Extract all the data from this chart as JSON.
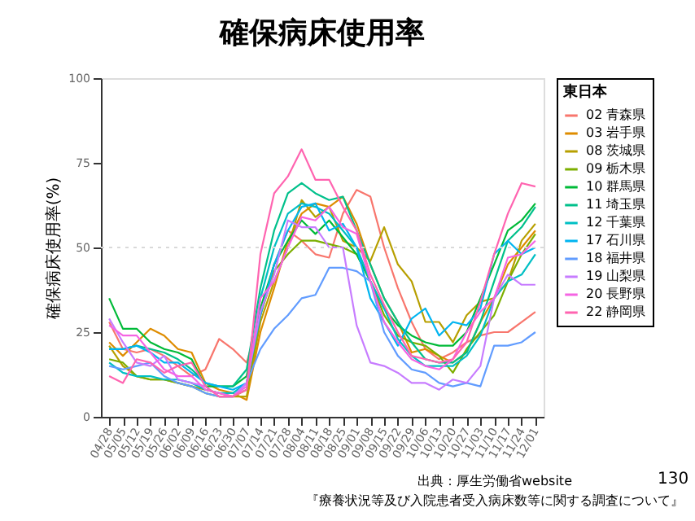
{
  "chart_data": {
    "type": "line",
    "title": "確保病床使用率",
    "ylabel": "確保病床使用率(%)",
    "legend_title": "東日本",
    "legend": "right",
    "line_style": "solid",
    "marker": "none",
    "categories": [
      "04/28",
      "05/05",
      "05/12",
      "05/19",
      "05/26",
      "06/02",
      "06/09",
      "06/16",
      "06/23",
      "06/30",
      "07/07",
      "07/14",
      "07/21",
      "07/28",
      "08/04",
      "08/11",
      "08/18",
      "08/25",
      "09/01",
      "09/08",
      "09/15",
      "09/22",
      "09/29",
      "10/06",
      "10/13",
      "10/20",
      "10/27",
      "11/03",
      "11/10",
      "11/17",
      "11/24",
      "12/01"
    ],
    "ylim": [
      0,
      100
    ],
    "yticks": [
      0,
      25,
      50,
      75,
      100
    ],
    "grid": false,
    "ref_lines": [
      {
        "axis": "y",
        "value": 50,
        "color": "#d9d9d9",
        "line_style": "dotted"
      }
    ],
    "series": [
      {
        "name": "02 青森県",
        "color": "#F8766D",
        "values": [
          28,
          20,
          19,
          20,
          18,
          15,
          12,
          14,
          23,
          20,
          16,
          30,
          45,
          55,
          52,
          48,
          47,
          60,
          67,
          65,
          50,
          38,
          28,
          20,
          17,
          19,
          22,
          24,
          25,
          25,
          28,
          31
        ]
      },
      {
        "name": "03 岩手県",
        "color": "#DE8C00",
        "values": [
          22,
          18,
          22,
          26,
          24,
          20,
          19,
          10,
          8,
          7,
          5,
          25,
          38,
          52,
          60,
          63,
          62,
          65,
          57,
          45,
          35,
          28,
          19,
          20,
          18,
          16,
          19,
          28,
          35,
          45,
          50,
          55
        ]
      },
      {
        "name": "08 茨城県",
        "color": "#B79F00",
        "values": [
          21,
          15,
          12,
          11,
          11,
          10,
          9,
          8,
          7,
          6,
          6,
          28,
          40,
          50,
          64,
          59,
          62,
          52,
          50,
          46,
          56,
          45,
          40,
          28,
          28,
          22,
          30,
          34,
          35,
          40,
          52,
          57
        ]
      },
      {
        "name": "09 栃木県",
        "color": "#7CAE00",
        "values": [
          17,
          16,
          12,
          11,
          11,
          10,
          9,
          7,
          6,
          6,
          8,
          30,
          43,
          48,
          52,
          52,
          51,
          50,
          48,
          40,
          30,
          24,
          22,
          21,
          18,
          13,
          20,
          25,
          30,
          40,
          48,
          54
        ]
      },
      {
        "name": "10 群馬県",
        "color": "#00BA38",
        "values": [
          35,
          26,
          26,
          22,
          20,
          19,
          17,
          9,
          9,
          9,
          12,
          32,
          45,
          52,
          58,
          54,
          58,
          53,
          48,
          40,
          32,
          27,
          24,
          22,
          21,
          21,
          25,
          35,
          45,
          55,
          58,
          63
        ]
      },
      {
        "name": "11 埼玉県",
        "color": "#00C08B",
        "values": [
          20,
          20,
          21,
          20,
          19,
          17,
          14,
          10,
          9,
          9,
          14,
          38,
          55,
          66,
          69,
          66,
          64,
          65,
          55,
          45,
          35,
          28,
          22,
          17,
          16,
          16,
          19,
          28,
          40,
          52,
          56,
          62
        ]
      },
      {
        "name": "12 千葉県",
        "color": "#00BFC4",
        "values": [
          16,
          13,
          12,
          12,
          11,
          11,
          10,
          8,
          7,
          7,
          10,
          35,
          50,
          60,
          63,
          62,
          60,
          55,
          50,
          40,
          32,
          23,
          18,
          15,
          15,
          15,
          18,
          24,
          35,
          40,
          42,
          48
        ]
      },
      {
        "name": "17 石川県",
        "color": "#00B4F0",
        "values": [
          20,
          20,
          21,
          19,
          16,
          16,
          13,
          10,
          9,
          8,
          10,
          30,
          45,
          55,
          62,
          63,
          55,
          57,
          50,
          35,
          28,
          21,
          29,
          32,
          24,
          28,
          27,
          32,
          48,
          52,
          48,
          50
        ]
      },
      {
        "name": "18 福井県",
        "color": "#619CFF",
        "values": [
          15,
          14,
          15,
          16,
          12,
          10,
          9,
          7,
          6,
          6,
          10,
          20,
          26,
          30,
          35,
          36,
          44,
          44,
          43,
          40,
          25,
          18,
          14,
          13,
          10,
          9,
          10,
          9,
          21,
          21,
          22,
          25
        ]
      },
      {
        "name": "19 山梨県",
        "color": "#C77CFF",
        "values": [
          29,
          22,
          16,
          15,
          18,
          11,
          10,
          9,
          6,
          6,
          10,
          31,
          42,
          58,
          56,
          56,
          50,
          50,
          27,
          16,
          15,
          13,
          10,
          10,
          8,
          11,
          10,
          15,
          35,
          42,
          39,
          39
        ]
      },
      {
        "name": "20 長野県",
        "color": "#F564E3",
        "values": [
          27,
          24,
          24,
          19,
          14,
          12,
          12,
          8,
          7,
          6,
          9,
          35,
          40,
          50,
          59,
          58,
          62,
          56,
          54,
          40,
          28,
          22,
          17,
          15,
          14,
          17,
          25,
          31,
          35,
          47,
          48,
          52
        ]
      },
      {
        "name": "22 静岡県",
        "color": "#FF64B0",
        "values": [
          12,
          10,
          17,
          16,
          13,
          15,
          16,
          9,
          6,
          6,
          8,
          48,
          66,
          71,
          79,
          70,
          70,
          62,
          55,
          42,
          33,
          25,
          18,
          17,
          16,
          17,
          22,
          34,
          48,
          60,
          69,
          68
        ]
      }
    ],
    "annotations": [
      "出典：厚生労働省website",
      "『療養状況等及び入院患者受入病床数等に関する調査について』",
      "130"
    ]
  }
}
